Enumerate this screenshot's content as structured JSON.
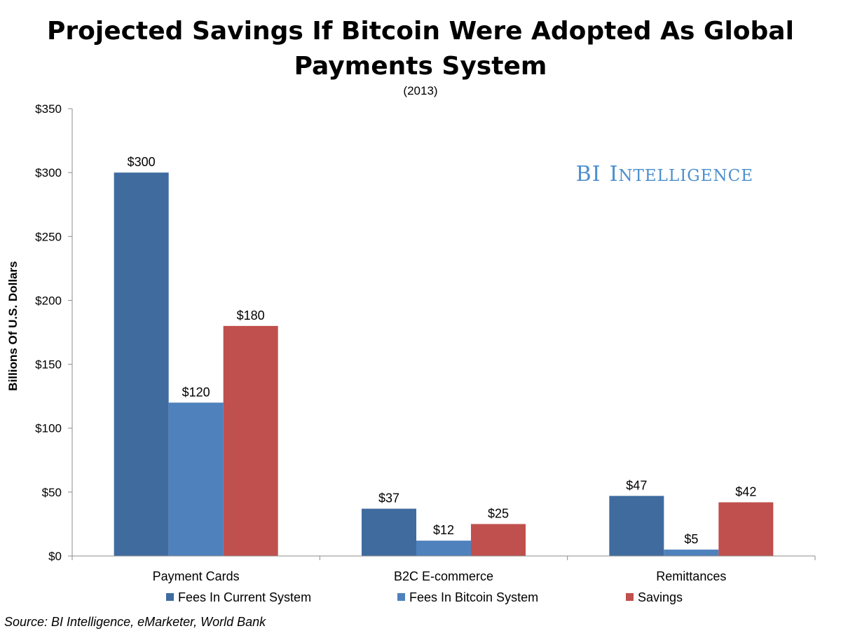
{
  "chart_data": {
    "type": "bar",
    "title": "Projected Savings If Bitcoin Were Adopted As Global Payments System",
    "title_lines": [
      "Projected Savings If Bitcoin Were Adopted As Global",
      "Payments System"
    ],
    "subtitle": "(2013)",
    "ylabel": "Billions Of U.S. Dollars",
    "xlabel": "",
    "ylim": [
      0,
      350
    ],
    "yticks": [
      0,
      50,
      100,
      150,
      200,
      250,
      300,
      350
    ],
    "ytick_labels": [
      "$0",
      "$50",
      "$100",
      "$150",
      "$200",
      "$250",
      "$300",
      "$350"
    ],
    "categories": [
      "Payment Cards",
      "B2C E-commerce",
      "Remittances"
    ],
    "series": [
      {
        "name": "Fees In Current System",
        "color": "#3f6b9f",
        "values": [
          300,
          37,
          47
        ],
        "labels": [
          "$300",
          "$37",
          "$47"
        ]
      },
      {
        "name": "Fees In Bitcoin System",
        "color": "#4f81bd",
        "values": [
          120,
          12,
          5
        ],
        "labels": [
          "$120",
          "$12",
          "$5"
        ]
      },
      {
        "name": "Savings",
        "color": "#c0504d",
        "values": [
          180,
          25,
          42
        ],
        "labels": [
          "$180",
          "$25",
          "$42"
        ]
      }
    ],
    "grid": false,
    "legend": "bottom"
  },
  "brand": {
    "text": "BI INTELLIGENCE",
    "lead": "BI",
    "rest_initial": "I",
    "rest_small": "NTELLIGENCE"
  },
  "source": "Source: BI Intelligence, eMarketer, World Bank"
}
